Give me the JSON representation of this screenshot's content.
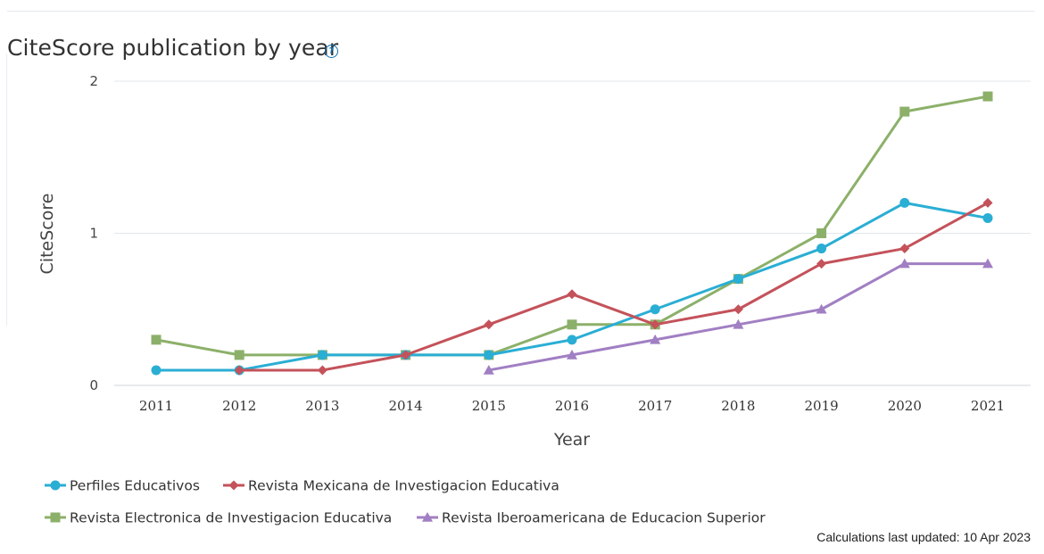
{
  "header": {
    "title": "CiteScore publication by year",
    "help_icon": "question-circle-icon"
  },
  "footer": {
    "updated_text": "Calculations last updated: 10 Apr 2023"
  },
  "chart_data": {
    "type": "line",
    "title": "CiteScore publication by year",
    "xlabel": "Year",
    "ylabel": "CiteScore",
    "x": [
      "2011",
      "2012",
      "2013",
      "2014",
      "2015",
      "2016",
      "2017",
      "2018",
      "2019",
      "2020",
      "2021"
    ],
    "ylim": [
      0,
      2
    ],
    "yticks": [
      0,
      1,
      2
    ],
    "grid": true,
    "legend_position": "bottom-left",
    "series": [
      {
        "name": "Perfiles Educativos",
        "color": "#2aaed4",
        "marker": "circle",
        "values": [
          0.1,
          0.1,
          0.2,
          0.2,
          0.2,
          0.3,
          0.5,
          0.7,
          0.9,
          1.2,
          1.1
        ]
      },
      {
        "name": "Revista Mexicana de Investigacion Educativa",
        "color": "#c4525a",
        "marker": "diamond",
        "values": [
          null,
          0.1,
          0.1,
          0.2,
          0.4,
          0.6,
          0.4,
          0.5,
          0.8,
          0.9,
          1.2
        ]
      },
      {
        "name": "Revista Electronica de Investigacion Educativa",
        "color": "#8cb069",
        "marker": "square",
        "values": [
          0.3,
          0.2,
          0.2,
          0.2,
          0.2,
          0.4,
          0.4,
          0.7,
          1.0,
          1.8,
          1.9
        ]
      },
      {
        "name": "Revista Iberoamericana de Educacion Superior",
        "color": "#a17fc3",
        "marker": "triangle",
        "values": [
          null,
          null,
          null,
          null,
          0.1,
          0.2,
          0.3,
          0.4,
          0.5,
          0.8,
          0.8
        ]
      }
    ]
  }
}
